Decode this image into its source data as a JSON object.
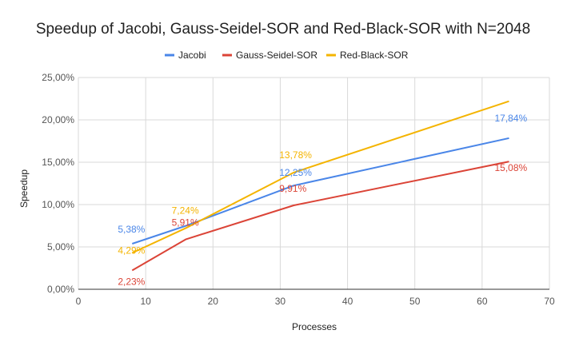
{
  "chart_data": {
    "type": "line",
    "title": "Speedup of Jacobi, Gauss-Seidel-SOR and Red-Black-SOR with N=2048",
    "xlabel": "Processes",
    "ylabel": "Speedup",
    "xlim": [
      0,
      70
    ],
    "ylim": [
      0,
      25
    ],
    "x_ticks": [
      "0",
      "10",
      "20",
      "30",
      "40",
      "50",
      "60",
      "70"
    ],
    "y_ticks": [
      "0,00%",
      "5,00%",
      "10,00%",
      "15,00%",
      "20,00%",
      "25,00%"
    ],
    "grid": true,
    "legend_position": "top",
    "series": [
      {
        "name": "Jacobi",
        "color": "#4a86e8",
        "points": [
          [
            8,
            5.38
          ],
          [
            16,
            7.5
          ],
          [
            32,
            12.25
          ],
          [
            64,
            17.84
          ]
        ],
        "labels": [
          {
            "x": 8,
            "y": 5.38,
            "text": "5,38%"
          },
          {
            "x": 32,
            "y": 12.25,
            "text": "12,25%"
          },
          {
            "x": 64,
            "y": 17.84,
            "text": "17,84%"
          }
        ]
      },
      {
        "name": "Gauss-Seidel-SOR",
        "color": "#db4437",
        "points": [
          [
            8,
            2.23
          ],
          [
            16,
            5.91
          ],
          [
            32,
            9.91
          ],
          [
            64,
            15.08
          ]
        ],
        "labels": [
          {
            "x": 8,
            "y": 2.23,
            "text": "2,23%"
          },
          {
            "x": 16,
            "y": 5.91,
            "text": "5,91%"
          },
          {
            "x": 32,
            "y": 9.91,
            "text": "9,91%"
          },
          {
            "x": 64,
            "y": 15.08,
            "text": "15,08%"
          }
        ]
      },
      {
        "name": "Red-Black-SOR",
        "color": "#f4b400",
        "points": [
          [
            8,
            4.29
          ],
          [
            16,
            7.24
          ],
          [
            32,
            13.78
          ],
          [
            64,
            22.2
          ]
        ],
        "labels": [
          {
            "x": 8,
            "y": 4.29,
            "text": "4,29%"
          },
          {
            "x": 16,
            "y": 7.24,
            "text": "7,24%"
          },
          {
            "x": 32,
            "y": 13.78,
            "text": "13,78%"
          }
        ]
      }
    ]
  }
}
